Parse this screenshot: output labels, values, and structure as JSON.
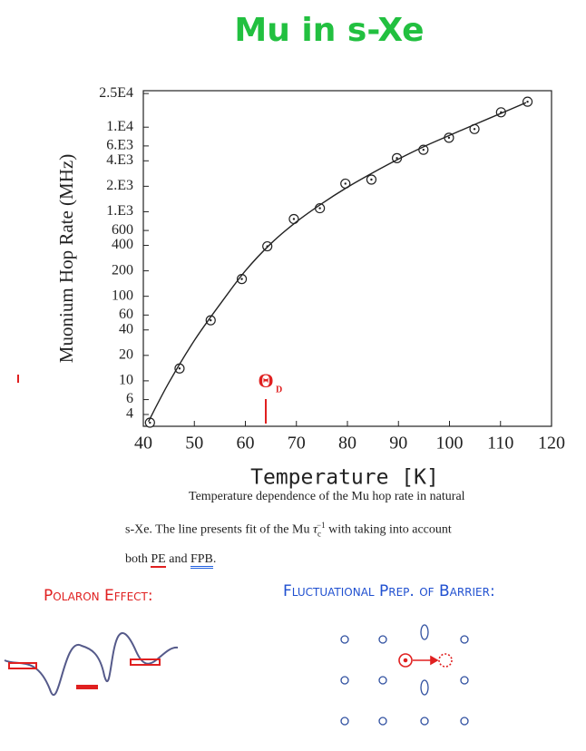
{
  "chart_data": {
    "type": "scatter",
    "title": "Mu in s-Xe",
    "x_label": "Temperature [K]",
    "y_label": "Muonium Hop Rate (MHz)",
    "xlim": [
      40,
      120
    ],
    "xticks": [
      40,
      50,
      60,
      70,
      80,
      90,
      100,
      110,
      120
    ],
    "ylim": [
      2.9,
      27000
    ],
    "yscale": "log",
    "yticks": [
      {
        "value": 25000,
        "label": "2.5E4"
      },
      {
        "value": 10000,
        "label": "1.E4"
      },
      {
        "value": 6000,
        "label": "6.E3"
      },
      {
        "value": 4000,
        "label": "4.E3"
      },
      {
        "value": 2000,
        "label": "2.E3"
      },
      {
        "value": 1000,
        "label": "1.E3"
      },
      600,
      400,
      200,
      100,
      60,
      40,
      20,
      10,
      6,
      4
    ],
    "series": [
      {
        "style": "points",
        "color": "#222222",
        "x": [
          41.3,
          47.1,
          53.2,
          59.3,
          64.3,
          69.5,
          74.6,
          79.6,
          84.7,
          89.7,
          94.9,
          99.9,
          104.9,
          110.1,
          115.3
        ],
        "values": [
          3.2,
          14,
          52,
          160,
          390,
          820,
          1100,
          2150,
          2400,
          4300,
          5400,
          7500,
          9500,
          15000,
          20000
        ]
      },
      {
        "style": "line",
        "color": "#222222",
        "x": [
          41,
          45,
          50,
          55,
          60,
          65,
          70,
          75,
          80,
          85,
          90,
          95,
          100,
          105,
          110,
          115
        ],
        "values": [
          3.3,
          9.5,
          30,
          80,
          200,
          420,
          760,
          1250,
          1950,
          2900,
          4200,
          5900,
          8000,
          10800,
          14500,
          19500
        ]
      }
    ],
    "marker": {
      "x": 64,
      "label": "Θ",
      "sub": "D",
      "color": "#e02020"
    }
  },
  "caption": {
    "line1": "Temperature dependence of the Mu hop rate in natural",
    "line2a": "s-Xe. The line presents fit of the Mu ",
    "tau": "τ",
    "tau_sub": "c",
    "tau_sup": "−1",
    "line2b": " with taking into account",
    "line3a": "both ",
    "pe": "PE",
    "line3b": " and ",
    "fpb": "FPB",
    "line3c": "."
  },
  "notes": {
    "left": "Polaron Effect:",
    "right": "Fluctuational Prep. of Barrier:"
  }
}
